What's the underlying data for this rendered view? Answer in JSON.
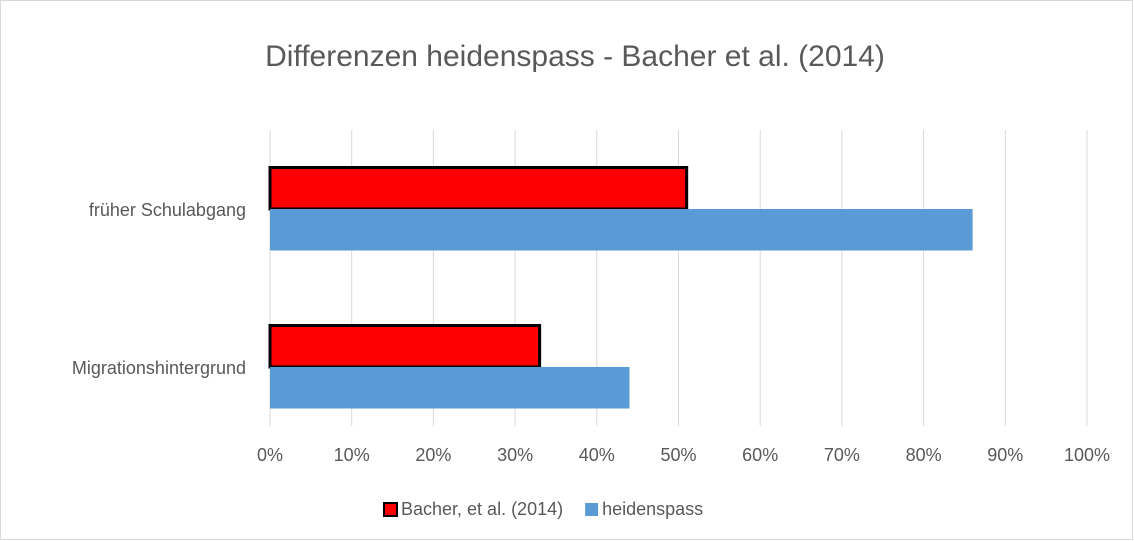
{
  "chart_data": {
    "type": "barh",
    "title": "Differenzen heidenspass - Bacher et al. (2014)",
    "categories": [
      "früher Schulabgang",
      "Migrationshintergrund"
    ],
    "series": [
      {
        "name": "Bacher, et al. (2014)",
        "color": "#ff0000",
        "edgecolor": "#000000",
        "values": [
          51,
          33
        ]
      },
      {
        "name": "heidenspass",
        "color": "#5b9bd5",
        "values": [
          86,
          44
        ]
      }
    ],
    "xlim": [
      0,
      100
    ],
    "xticks": [
      {
        "value": 0,
        "label": "0%"
      },
      {
        "value": 10,
        "label": "10%"
      },
      {
        "value": 20,
        "label": "20%"
      },
      {
        "value": 30,
        "label": "30%"
      },
      {
        "value": 40,
        "label": "40%"
      },
      {
        "value": 50,
        "label": "50%"
      },
      {
        "value": 60,
        "label": "60%"
      },
      {
        "value": 70,
        "label": "70%"
      },
      {
        "value": 80,
        "label": "80%"
      },
      {
        "value": 90,
        "label": "90%"
      },
      {
        "value": 100,
        "label": "100%"
      }
    ],
    "grid": true,
    "legend": "bottom"
  }
}
